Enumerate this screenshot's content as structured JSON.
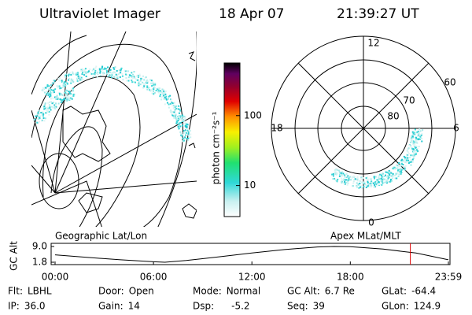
{
  "header": {
    "title": "Ultraviolet Imager",
    "date": "18 Apr 07",
    "time": "21:39:27 UT"
  },
  "colorbar": {
    "label": "photon cm⁻²s⁻¹",
    "log": true,
    "lim": [
      3.6,
      565
    ],
    "ticks": [
      10,
      100
    ]
  },
  "polar": {
    "mlt_labels": [
      "12",
      "18",
      "6",
      "0"
    ],
    "lat_labels": [
      "60",
      "70",
      "80"
    ]
  },
  "altitude_plot": {
    "left_label": "Geographic Lat/Lon",
    "right_label": "Apex MLat/MLT",
    "y_label": "GC Alt",
    "xlim": [
      0,
      23.98
    ],
    "xticks": [
      {
        "value": 0,
        "label": "00:00"
      },
      {
        "value": 6,
        "label": "06:00"
      },
      {
        "value": 12,
        "label": "12:00"
      },
      {
        "value": 18,
        "label": "18:00"
      },
      {
        "value": 23.98,
        "label": "23:59"
      }
    ],
    "ylim": [
      1.8,
      9.0
    ],
    "yticks": [
      {
        "value": 9.0,
        "label": "9.0"
      },
      {
        "value": 1.8,
        "label": "1.8"
      }
    ],
    "x": [
      0,
      2,
      4,
      6,
      6.7,
      8,
      10,
      12,
      14,
      16,
      17,
      18,
      20,
      22,
      23.98
    ],
    "values": [
      5.2,
      4.0,
      2.9,
      2.0,
      1.8,
      2.6,
      4.3,
      6.0,
      7.6,
      8.8,
      9.0,
      8.9,
      7.8,
      6.0,
      2.9
    ],
    "marker_x": 21.66,
    "marker_color": "#e00000"
  },
  "info": {
    "rows": [
      [
        {
          "label": "Flt:",
          "value": "LBHL"
        },
        {
          "label": "Door:",
          "value": "Open"
        },
        {
          "label": "Mode:",
          "value": "Normal"
        },
        {
          "label": "GC Alt:",
          "value": "6.7 Re"
        },
        {
          "label": "GLat:",
          "value": "-64.4"
        }
      ],
      [
        {
          "label": "IP:",
          "value": "36.0"
        },
        {
          "label": "Gain:",
          "value": "14"
        },
        {
          "label": "Dsp:",
          "value": "-5.2"
        },
        {
          "label": "Seq:",
          "value": "39"
        },
        {
          "label": "GLon:",
          "value": "124.9"
        }
      ]
    ]
  }
}
